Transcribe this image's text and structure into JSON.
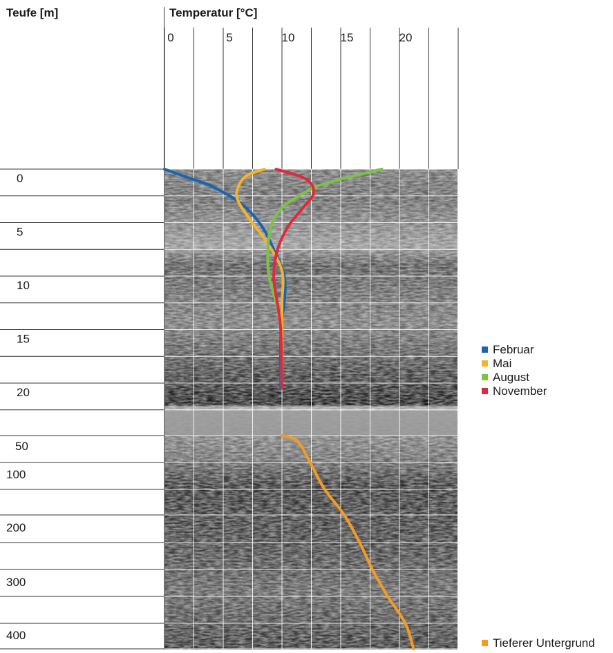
{
  "chart_data": {
    "type": "line",
    "y_title": "Teufe [m]",
    "x_title": "Temperatur [°C]",
    "x_ticks": [
      0,
      5,
      10,
      15,
      20
    ],
    "xlim": [
      0,
      25
    ],
    "upper_depth_ticks": [
      0,
      5,
      10,
      15,
      20
    ],
    "upper_ylim": [
      0,
      22
    ],
    "lower_depth_ticks": [
      50,
      100,
      200,
      300,
      400
    ],
    "grid": true,
    "legend_position": "right",
    "series": [
      {
        "name": "Februar",
        "color": "#1a64b4",
        "segment": "upper",
        "points": [
          [
            0,
            0
          ],
          [
            2,
            0.8
          ],
          [
            4,
            1.6
          ],
          [
            6.5,
            3.2
          ],
          [
            8.2,
            5.2
          ],
          [
            9.3,
            7.5
          ],
          [
            10.2,
            10
          ],
          [
            10.2,
            12.5
          ],
          [
            9.9,
            15
          ],
          [
            9.9,
            20.5
          ]
        ]
      },
      {
        "name": "Mai",
        "color": "#f5b428",
        "segment": "upper",
        "points": [
          [
            8.5,
            0
          ],
          [
            7,
            0.6
          ],
          [
            6.3,
            1.6
          ],
          [
            6.2,
            2.8
          ],
          [
            7.2,
            4.6
          ],
          [
            8.7,
            6.8
          ],
          [
            10,
            9.5
          ],
          [
            10,
            12.5
          ],
          [
            10,
            15
          ],
          [
            10,
            20.5
          ]
        ]
      },
      {
        "name": "August",
        "color": "#7dc246",
        "segment": "upper",
        "points": [
          [
            18.5,
            0
          ],
          [
            15.5,
            0.8
          ],
          [
            13,
            1.6
          ],
          [
            11.3,
            2.6
          ],
          [
            10,
            3.6
          ],
          [
            9.1,
            5.2
          ],
          [
            8.8,
            7.5
          ],
          [
            8.9,
            10
          ],
          [
            9.5,
            12.5
          ],
          [
            9.9,
            15
          ],
          [
            10,
            20.5
          ]
        ]
      },
      {
        "name": "November",
        "color": "#e1283c",
        "segment": "upper",
        "points": [
          [
            9.5,
            0
          ],
          [
            12,
            0.9
          ],
          [
            12.7,
            2.2
          ],
          [
            11.8,
            3.6
          ],
          [
            10.5,
            5.4
          ],
          [
            9.6,
            7.6
          ],
          [
            9.3,
            10
          ],
          [
            9.6,
            12.5
          ],
          [
            9.9,
            15
          ],
          [
            10,
            20.5
          ]
        ]
      },
      {
        "name": "Tieferer Untergrund",
        "color": "#f59a23",
        "segment": "lower",
        "points": [
          [
            10,
            20
          ],
          [
            11.3,
            60
          ],
          [
            12.4,
            100
          ],
          [
            13.6,
            150
          ],
          [
            15.3,
            200
          ],
          [
            16.6,
            250
          ],
          [
            17.7,
            300
          ],
          [
            19,
            350
          ],
          [
            20.5,
            400
          ],
          [
            21.2,
            420
          ]
        ]
      }
    ]
  }
}
